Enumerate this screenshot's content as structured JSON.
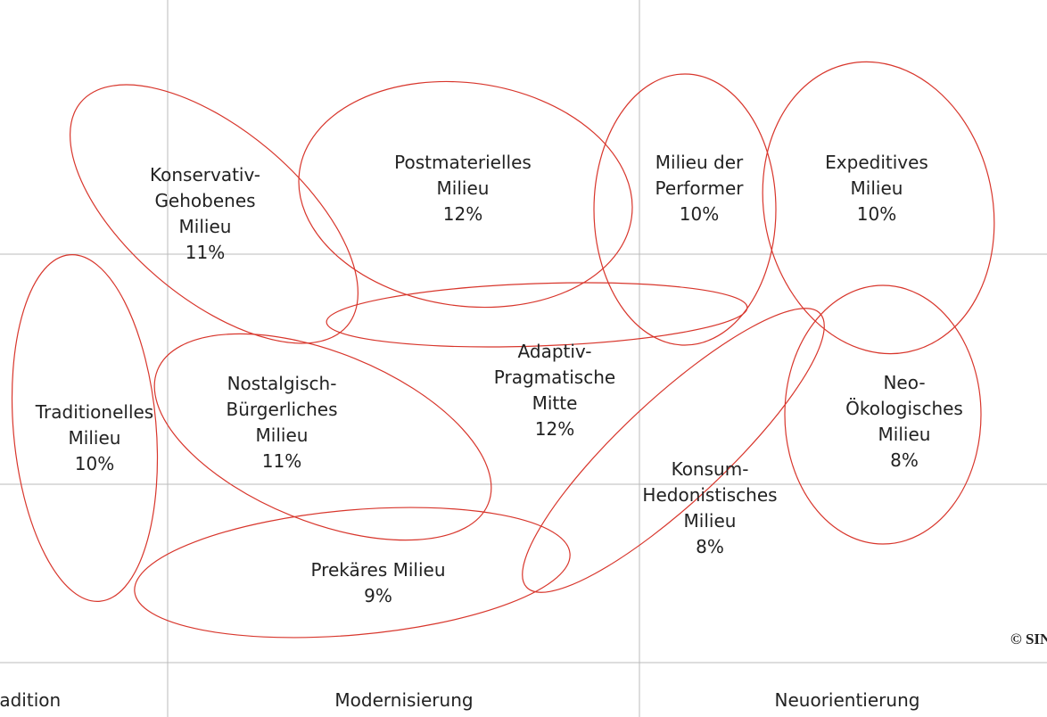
{
  "nodes": [
    {
      "lines": [
        "Konservativ-",
        "Gehobenes",
        "Milieu"
      ],
      "share": "11%"
    },
    {
      "lines": [
        "Postmaterielles",
        "Milieu"
      ],
      "share": "12%"
    },
    {
      "lines": [
        "Milieu der",
        "Performer"
      ],
      "share": "10%"
    },
    {
      "lines": [
        "Expeditives",
        "Milieu"
      ],
      "share": "10%"
    },
    {
      "lines": [
        "Traditionelles",
        "Milieu"
      ],
      "share": "10%"
    },
    {
      "lines": [
        "Nostalgisch-",
        "Bürgerliches",
        "Milieu"
      ],
      "share": "11%"
    },
    {
      "lines": [
        "Adaptiv-",
        "Pragmatische",
        "Mitte"
      ],
      "share": "12%"
    },
    {
      "lines": [
        "Neo-",
        "Ökologisches",
        "Milieu"
      ],
      "share": "8%"
    },
    {
      "lines": [
        "Konsum-",
        "Hedonistisches",
        "Milieu"
      ],
      "share": "8%"
    },
    {
      "lines": [
        "Prekäres Milieu"
      ],
      "share": "9%"
    }
  ],
  "axis_labels": [
    "Tradition",
    "Modernisierung",
    "Neuorientierung"
  ],
  "copyright": "© SINUS"
}
